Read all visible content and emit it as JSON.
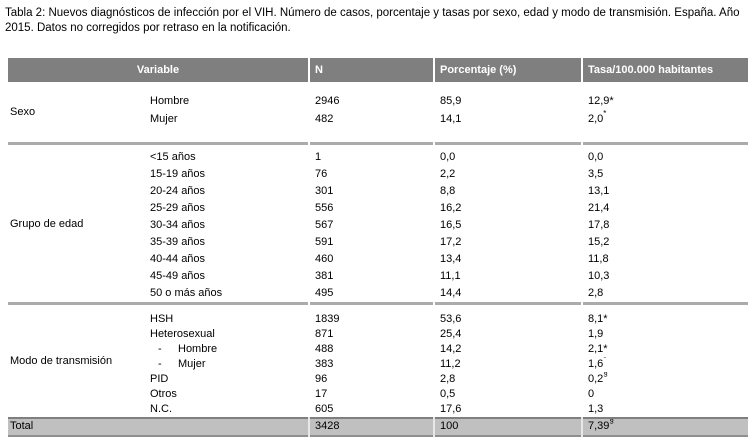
{
  "caption": "Tabla 2: Nuevos diagnósticos de infección por el VIH. Número de casos, porcentaje y tasas por sexo, edad y modo de transmisión. España. Año 2015. Datos no corregidos por retraso en la notificación.",
  "colors": {
    "header_bg": "#7f7f7f",
    "header_text": "#ffffff",
    "total_bg": "#c0c0c0",
    "separator": "#ababab",
    "text": "#000000"
  },
  "table": {
    "headers": [
      "Variable",
      "N",
      "Porcentaje (%)",
      "Tasa/100.000 habitantes"
    ],
    "sections": [
      {
        "name": "Sexo",
        "rows": [
          {
            "label": "Hombre",
            "n": "2946",
            "pct": "85,9",
            "tasa": "12,9*",
            "sup": ""
          },
          {
            "label": "Mujer",
            "n": "482",
            "pct": "14,1",
            "tasa": "2,0",
            "sup": "*"
          }
        ]
      },
      {
        "name": "Grupo de edad",
        "rows": [
          {
            "label": "<15 años",
            "n": "1",
            "pct": "0,0",
            "tasa": "0,0",
            "sup": ""
          },
          {
            "label": "15-19 años",
            "n": "76",
            "pct": "2,2",
            "tasa": "3,5",
            "sup": ""
          },
          {
            "label": "20-24 años",
            "n": "301",
            "pct": "8,8",
            "tasa": "13,1",
            "sup": ""
          },
          {
            "label": "25-29 años",
            "n": "556",
            "pct": "16,2",
            "tasa": "21,4",
            "sup": ""
          },
          {
            "label": "30-34 años",
            "n": "567",
            "pct": "16,5",
            "tasa": "17,8",
            "sup": ""
          },
          {
            "label": "35-39 años",
            "n": "591",
            "pct": "17,2",
            "tasa": "15,2",
            "sup": ""
          },
          {
            "label": "40-44 años",
            "n": "460",
            "pct": "13,4",
            "tasa": "11,8",
            "sup": ""
          },
          {
            "label": "45-49 años",
            "n": "381",
            "pct": "11,1",
            "tasa": "10,3",
            "sup": ""
          },
          {
            "label": "50 o más años",
            "n": "495",
            "pct": "14,4",
            "tasa": "2,8",
            "sup": ""
          }
        ]
      },
      {
        "name": "Modo de transmisión",
        "rows": [
          {
            "label": "HSH",
            "n": "1839",
            "pct": "53,6",
            "tasa": "8,1*",
            "sup": ""
          },
          {
            "label": "Heterosexual",
            "n": "871",
            "pct": "25,4",
            "tasa": "1,9",
            "sup": ""
          },
          {
            "label": "Hombre",
            "prefix": "-",
            "n": "488",
            "pct": "14,2",
            "tasa": "2,1*",
            "sup": ""
          },
          {
            "label": "Mujer",
            "prefix": "-",
            "n": "383",
            "pct": "11,2",
            "tasa": "1,6",
            "sup": "*"
          },
          {
            "label": "PID",
            "n": "96",
            "pct": "2,8",
            "tasa": "0,2",
            "sup": "§"
          },
          {
            "label": "Otros",
            "n": "17",
            "pct": "0,5",
            "tasa": "0",
            "sup": ""
          },
          {
            "label": "N.C.",
            "n": "605",
            "pct": "17,6",
            "tasa": "1,3",
            "sup": ""
          }
        ]
      }
    ],
    "total": {
      "label": "Total",
      "n": "3428",
      "pct": "100",
      "tasa": "7,39",
      "sup": "§"
    }
  }
}
